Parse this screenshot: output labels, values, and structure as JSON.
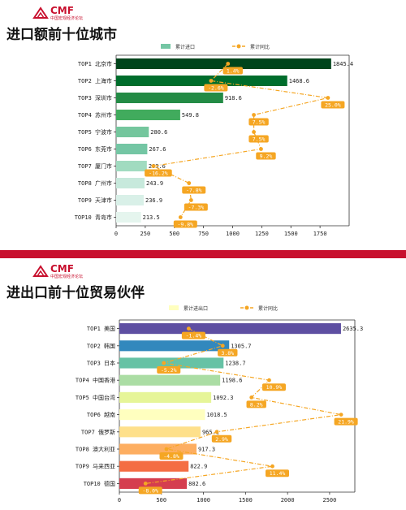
{
  "panel1": {
    "brand": "CMF",
    "brand_sub": "中国宏观经济论坛",
    "title": "进口额前十位城市",
    "chart_data": {
      "type": "bar",
      "orientation": "horizontal",
      "categories": [
        "TOP1 北京市",
        "TOP2 上海市",
        "TOP3 深圳市",
        "TOP4 苏州市",
        "TOP5 宁波市",
        "TOP6 东莞市",
        "TOP7 厦门市",
        "TOP8 广州市",
        "TOP9 天津市",
        "TOP10 青岛市"
      ],
      "series": [
        {
          "name": "累计进口",
          "values": [
            1845.4,
            1468.6,
            918.6,
            549.8,
            280.6,
            267.6,
            263.6,
            243.9,
            236.9,
            213.5
          ],
          "colors": [
            "#00441b",
            "#006d2c",
            "#238b45",
            "#41ab5d",
            "#74c69d",
            "#74c6a4",
            "#a1dbc0",
            "#c7e9dc",
            "#d9f0e8",
            "#e5f5ee"
          ]
        },
        {
          "name": "累计同比",
          "type": "line",
          "color": "#f5a623",
          "values": [
            1.4,
            -2.6,
            25.0,
            7.5,
            7.5,
            9.2,
            -16.2,
            -7.8,
            -7.3,
            -9.8
          ],
          "labels": [
            "1.4%",
            "-2.6%",
            "25.0%",
            "7.5%",
            "7.5%",
            "9.2%",
            "-16.2%",
            "-7.8%",
            "-7.3%",
            "-9.8%"
          ]
        }
      ],
      "xlim": [
        0,
        2000
      ],
      "xticks": [
        0,
        250,
        500,
        750,
        1000,
        1250,
        1500,
        1750
      ],
      "xtick_labels": [
        "0",
        "250",
        "500",
        "750",
        "1000",
        "1250",
        "1500",
        "1750"
      ],
      "legend": "top-center",
      "value_labels": [
        "1845.4",
        "1468.6",
        "918.6",
        "549.8",
        "280.6",
        "267.6",
        "263.6",
        "243.9",
        "236.9",
        "213.5"
      ]
    }
  },
  "panel2": {
    "brand": "CMF",
    "brand_sub": "中国宏观经济论坛",
    "title": "进出口前十位贸易伙伴",
    "chart_data": {
      "type": "bar",
      "orientation": "horizontal",
      "categories": [
        "TOP1 美国",
        "TOP2 韩国",
        "TOP3 日本",
        "TOP4 中国香港",
        "TOP5 中国台湾",
        "TOP6 越南",
        "TOP7 俄罗斯",
        "TOP8 澳大利亚",
        "TOP9 马来西亚",
        "TOP10 德国"
      ],
      "series": [
        {
          "name": "累计进出口",
          "values": [
            2635.3,
            1305.7,
            1238.7,
            1198.6,
            1092.3,
            1018.5,
            965.1,
            917.3,
            822.9,
            802.6
          ],
          "colors": [
            "#5e4fa2",
            "#3288bd",
            "#66c2a5",
            "#abdda4",
            "#e6f598",
            "#ffffbf",
            "#fee08b",
            "#fdae61",
            "#f46d43",
            "#d53e4f"
          ]
        },
        {
          "name": "累计同比",
          "type": "line",
          "color": "#f5a623",
          "values": [
            -1.4,
            3.8,
            -5.2,
            10.9,
            8.2,
            21.9,
            2.9,
            -4.8,
            11.4,
            -8.0
          ],
          "labels": [
            "-1.4%",
            "3.8%",
            "-5.2%",
            "10.9%",
            "8.2%",
            "21.9%",
            "2.9%",
            "-4.8%",
            "11.4%",
            "-8.0%"
          ]
        }
      ],
      "xlim": [
        0,
        2800
      ],
      "xticks": [
        0,
        500,
        1000,
        1500,
        2000,
        2500
      ],
      "xtick_labels": [
        "0",
        "500",
        "1000",
        "1500",
        "2000",
        "2500"
      ],
      "legend": "top-center",
      "value_labels": [
        "2635.3",
        "1305.7",
        "1238.7",
        "1198.6",
        "1092.3",
        "1018.5",
        "965.1",
        "917.3",
        "822.9",
        "802.6"
      ]
    }
  }
}
